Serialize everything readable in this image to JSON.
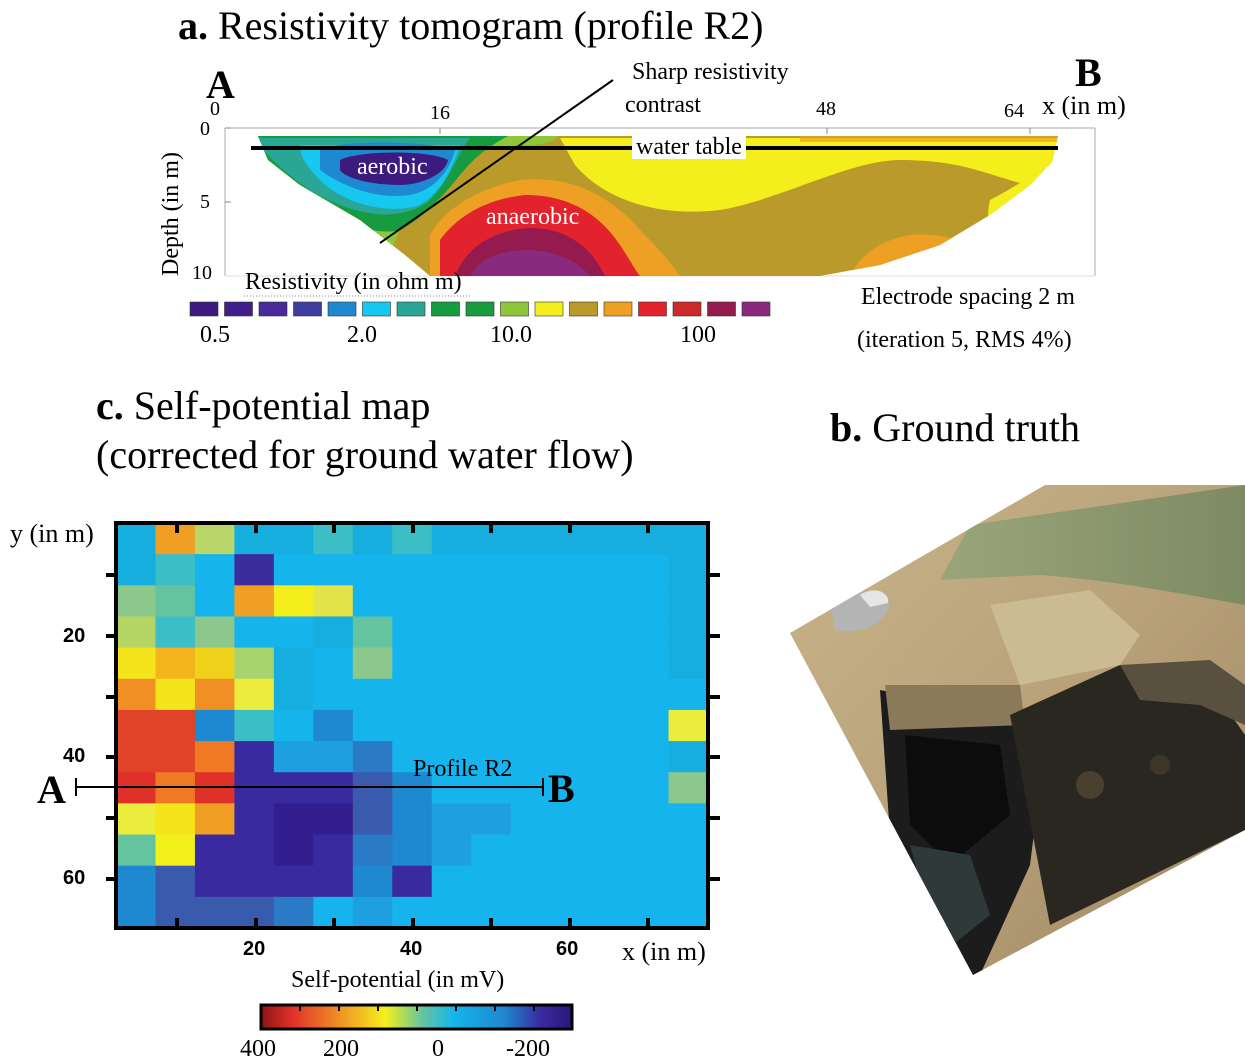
{
  "panel_a": {
    "title_prefix": "a.",
    "title_text": "Resistivity tomogram (profile R2)",
    "point_a": "A",
    "point_b": "B",
    "x_ticks": [
      "0",
      "16",
      "48",
      "64"
    ],
    "x_axis_label": "x (in m)",
    "y_axis_label": "Depth (in m)",
    "y_ticks": [
      "0",
      "5",
      "10"
    ],
    "annotation_sharp": [
      "Sharp resistivity",
      "contrast"
    ],
    "label_water_table": "water table",
    "label_aerobic": "aerobic",
    "label_anaerobic": "anaerobic",
    "colorbar_title": "Resistivity (in ohm m)",
    "colorbar_colors": [
      "#3c1a7e",
      "#421e8a",
      "#4a2a9a",
      "#3d3d9f",
      "#1e88d0",
      "#16c8f0",
      "#2aa696",
      "#169b3e",
      "#169b3e",
      "#8fc63a",
      "#f4ef1c",
      "#b99a2a",
      "#eea024",
      "#e2222c",
      "#cc2a2a",
      "#951a4e",
      "#8a2a7e"
    ],
    "colorbar_ticks": [
      "0.5",
      "2.0",
      "10.0",
      "100"
    ],
    "note_line1": "Electrode spacing 2 m",
    "note_line2": "(iteration 5, RMS 4%)"
  },
  "panel_b": {
    "title_prefix": "b.",
    "title_text": "Ground truth"
  },
  "panel_c": {
    "title_prefix": "c.",
    "title_line1": "Self-potential map",
    "title_line2": "(corrected for ground water flow)",
    "y_axis_label": "y (in m)",
    "y_ticks": [
      "20",
      "40",
      "60"
    ],
    "x_ticks": [
      "20",
      "40",
      "60"
    ],
    "x_axis_label": "x (in m)",
    "profile_label": "Profile R2",
    "point_a": "A",
    "point_b": "B",
    "colorbar_title": "Self-potential (in mV)",
    "colorbar_ticks": [
      "400",
      "200",
      "0",
      "-200"
    ],
    "grid": [
      [
        "#16aede",
        "#f09e24",
        "#b9d66a",
        "#16aede",
        "#16aede",
        "#3cbec6",
        "#16aede",
        "#3cbec6",
        "#16aede",
        "#16aede",
        "#16aede",
        "#16aede",
        "#16aede",
        "#16aede",
        "#16aede"
      ],
      [
        "#16aede",
        "#3cbec6",
        "#16b4ec",
        "#3c2c9c",
        "#16b4ec",
        "#16b4ec",
        "#16b4ec",
        "#16b4ec",
        "#16b4ec",
        "#16b4ec",
        "#16b4ec",
        "#16b4ec",
        "#16b4ec",
        "#16b4ec",
        "#16aede"
      ],
      [
        "#8cc88c",
        "#64c4a0",
        "#16b4ec",
        "#f09e24",
        "#f4ef1c",
        "#e4e44a",
        "#16b4ec",
        "#16b4ec",
        "#16b4ec",
        "#16b4ec",
        "#16b4ec",
        "#16b4ec",
        "#16b4ec",
        "#16b4ec",
        "#16aede"
      ],
      [
        "#b4d464",
        "#3cbec6",
        "#8cc88c",
        "#16b4ec",
        "#16b4ec",
        "#16aede",
        "#64c4a0",
        "#16b4ec",
        "#16b4ec",
        "#16b4ec",
        "#16b4ec",
        "#16b4ec",
        "#16b4ec",
        "#16b4ec",
        "#16aede"
      ],
      [
        "#f4e41c",
        "#f4b41c",
        "#f0d21c",
        "#a8d470",
        "#16aede",
        "#16b4ec",
        "#8cc88c",
        "#16b4ec",
        "#16b4ec",
        "#16b4ec",
        "#16b4ec",
        "#16b4ec",
        "#16b4ec",
        "#16b4ec",
        "#16aede"
      ],
      [
        "#f09024",
        "#f4e41c",
        "#f09024",
        "#ecec3c",
        "#16aede",
        "#16b4ec",
        "#16b4ec",
        "#16b4ec",
        "#16b4ec",
        "#16b4ec",
        "#16b4ec",
        "#16b4ec",
        "#16b4ec",
        "#16b4ec",
        "#16b4ec"
      ],
      [
        "#e04428",
        "#e04428",
        "#1e88d0",
        "#3cbec6",
        "#16b4ec",
        "#1e88d0",
        "#16b4ec",
        "#16b4ec",
        "#16b4ec",
        "#16b4ec",
        "#16b4ec",
        "#16b4ec",
        "#16b4ec",
        "#16b4ec",
        "#ecec3c"
      ],
      [
        "#e04428",
        "#e04428",
        "#f07a24",
        "#3a2aa0",
        "#1ea0e0",
        "#1ea0e0",
        "#2a7ac6",
        "#16b4ec",
        "#16b4ec",
        "#16b4ec",
        "#16b4ec",
        "#16b4ec",
        "#16b4ec",
        "#16b4ec",
        "#16aede"
      ],
      [
        "#e0302a",
        "#f07a24",
        "#e0302a",
        "#3a2aa0",
        "#3a2aa0",
        "#3a2aa0",
        "#3a5aae",
        "#1e88d0",
        "#16b4ec",
        "#16b4ec",
        "#16b4ec",
        "#16b4ec",
        "#16b4ec",
        "#16b4ec",
        "#8cc88c"
      ],
      [
        "#ecec3c",
        "#f4e41c",
        "#f09e24",
        "#3a2aa0",
        "#321e8e",
        "#321e8e",
        "#3a5aae",
        "#1e88d0",
        "#1ea0e0",
        "#1ea0e0",
        "#16b4ec",
        "#16b4ec",
        "#16b4ec",
        "#16b4ec",
        "#16b4ec"
      ],
      [
        "#64c4a0",
        "#f4f01c",
        "#3a2aa0",
        "#3a2aa0",
        "#321e8e",
        "#3a2aa0",
        "#2a7ac6",
        "#1e88d0",
        "#1ea0e0",
        "#16b4ec",
        "#16b4ec",
        "#16b4ec",
        "#16b4ec",
        "#16b4ec",
        "#16b4ec"
      ],
      [
        "#1e88d0",
        "#3a5aae",
        "#3a2aa0",
        "#3a2aa0",
        "#3a2aa0",
        "#3a2aa0",
        "#1e88d0",
        "#3a2aa0",
        "#16b4ec",
        "#16b4ec",
        "#16b4ec",
        "#16b4ec",
        "#16b4ec",
        "#16b4ec",
        "#16b4ec"
      ],
      [
        "#1e88d0",
        "#3a5aae",
        "#3a5aae",
        "#3a5aae",
        "#2a7ac6",
        "#16b4ec",
        "#1ea0e0",
        "#16b4ec",
        "#16b4ec",
        "#16b4ec",
        "#16b4ec",
        "#16b4ec",
        "#16b4ec",
        "#16b4ec",
        "#16b4ec"
      ]
    ]
  }
}
